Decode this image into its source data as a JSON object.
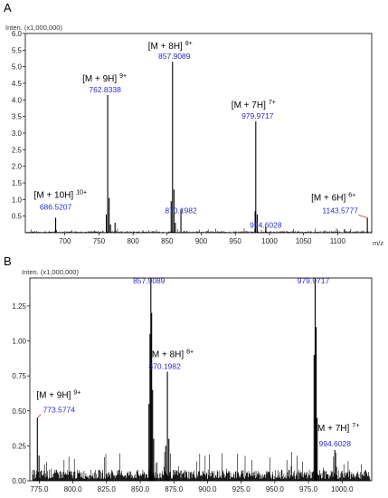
{
  "chart_data": [
    {
      "panel": "A",
      "type": "line",
      "intensity_unit": "Inten. (x1,000,000)",
      "x_unit": "m/z",
      "xlim": [
        642,
        1150
      ],
      "ylim": [
        0,
        6.0
      ],
      "x_ticks": [
        "700",
        "750",
        "800",
        "850",
        "900",
        "950",
        "1000",
        "1050",
        "1100"
      ],
      "x_tick_values": [
        700,
        750,
        800,
        850,
        900,
        950,
        1000,
        1050,
        1100
      ],
      "y_ticks": [
        "0.5",
        "1.0",
        "1.5",
        "2.0",
        "2.5",
        "3.0",
        "3.5",
        "4.0",
        "4.5",
        "5.0",
        "5.5",
        "6.0"
      ],
      "y_tick_values": [
        0.5,
        1.0,
        1.5,
        2.0,
        2.5,
        3.0,
        3.5,
        4.0,
        4.5,
        5.0,
        5.5,
        6.0
      ],
      "peaks": [
        {
          "x": 686.5,
          "y": 0.45
        },
        {
          "x": 760.8,
          "y": 0.55
        },
        {
          "x": 762.8,
          "y": 4.15
        },
        {
          "x": 764.9,
          "y": 1.05
        },
        {
          "x": 766.9,
          "y": 0.25
        },
        {
          "x": 773.6,
          "y": 0.3
        },
        {
          "x": 855.9,
          "y": 0.95
        },
        {
          "x": 857.9,
          "y": 5.15
        },
        {
          "x": 860.0,
          "y": 1.3
        },
        {
          "x": 862.0,
          "y": 0.3
        },
        {
          "x": 870.2,
          "y": 0.7
        },
        {
          "x": 979.0,
          "y": 0.65
        },
        {
          "x": 979.97,
          "y": 3.35
        },
        {
          "x": 982.1,
          "y": 0.55
        },
        {
          "x": 994.6,
          "y": 0.18
        },
        {
          "x": 1143.58,
          "y": 0.45
        }
      ],
      "annotations": [
        {
          "ion": "[M + 10H]",
          "charge": "10+",
          "mz": "686.5207",
          "x": 686.5,
          "y": 0.45
        },
        {
          "ion": "[M + 9H]",
          "charge": "9+",
          "mz": "762.8338",
          "x": 762.8,
          "y": 4.15
        },
        {
          "ion": "[M + 8H]",
          "charge": "8+",
          "mz": "857.9089",
          "x": 857.9,
          "y": 5.15
        },
        {
          "ion": "",
          "charge": "",
          "mz": "870.1982",
          "x": 870.2,
          "y": 0.7
        },
        {
          "ion": "[M + 7H]",
          "charge": "7+",
          "mz": "979.9717",
          "x": 979.97,
          "y": 3.35
        },
        {
          "ion": "",
          "charge": "",
          "mz": "994.6028",
          "x": 994.6,
          "y": 0.18
        },
        {
          "ion": "[M + 6H]",
          "charge": "6+",
          "mz": "1143.5777",
          "x": 1143.58,
          "y": 0.45
        }
      ]
    },
    {
      "panel": "B",
      "type": "line",
      "intensity_unit": "Inten. (x1,000,000)",
      "x_unit": "m/z",
      "xlim": [
        768,
        1022
      ],
      "ylim": [
        0,
        1.45
      ],
      "x_ticks": [
        "775.0",
        "800.0",
        "825.0",
        "850.0",
        "875.0",
        "900.0",
        "925.0",
        "950.0",
        "975.0",
        "1000.0"
      ],
      "x_tick_values": [
        775,
        800,
        825,
        850,
        875,
        900,
        925,
        950,
        975,
        1000
      ],
      "y_ticks": [
        "0.00",
        "0.25",
        "0.50",
        "0.75",
        "1.00",
        "1.25"
      ],
      "y_tick_values": [
        0,
        0.25,
        0.5,
        0.75,
        1.0,
        1.25
      ],
      "peaks": [
        {
          "x": 773.58,
          "y": 0.45
        },
        {
          "x": 774.8,
          "y": 0.18
        },
        {
          "x": 856.5,
          "y": 0.55
        },
        {
          "x": 857.3,
          "y": 1.05
        },
        {
          "x": 857.91,
          "y": 1.45
        },
        {
          "x": 858.5,
          "y": 1.2
        },
        {
          "x": 859.2,
          "y": 0.65
        },
        {
          "x": 860.0,
          "y": 0.3
        },
        {
          "x": 869.0,
          "y": 0.25
        },
        {
          "x": 870.2,
          "y": 0.78
        },
        {
          "x": 871.3,
          "y": 0.3
        },
        {
          "x": 979.2,
          "y": 0.9
        },
        {
          "x": 979.97,
          "y": 1.45
        },
        {
          "x": 980.7,
          "y": 1.1
        },
        {
          "x": 981.5,
          "y": 0.45
        },
        {
          "x": 994.6,
          "y": 0.22
        },
        {
          "x": 995.8,
          "y": 0.1
        }
      ],
      "annotations": [
        {
          "ion": "[M + 9H]",
          "charge": "9+",
          "mz": "773.5774",
          "x": 773.58,
          "y": 0.45
        },
        {
          "ion": "",
          "charge": "",
          "mz": "857.9089",
          "x": 857.91,
          "y": 1.45
        },
        {
          "ion": "[M + 8H]",
          "charge": "8+",
          "mz": "870.1982",
          "x": 870.2,
          "y": 0.78
        },
        {
          "ion": "",
          "charge": "",
          "mz": "979.9717",
          "x": 979.97,
          "y": 1.45
        },
        {
          "ion": "[M + 7H]",
          "charge": "7+",
          "mz": "994.6028",
          "x": 994.6,
          "y": 0.22
        }
      ]
    }
  ]
}
